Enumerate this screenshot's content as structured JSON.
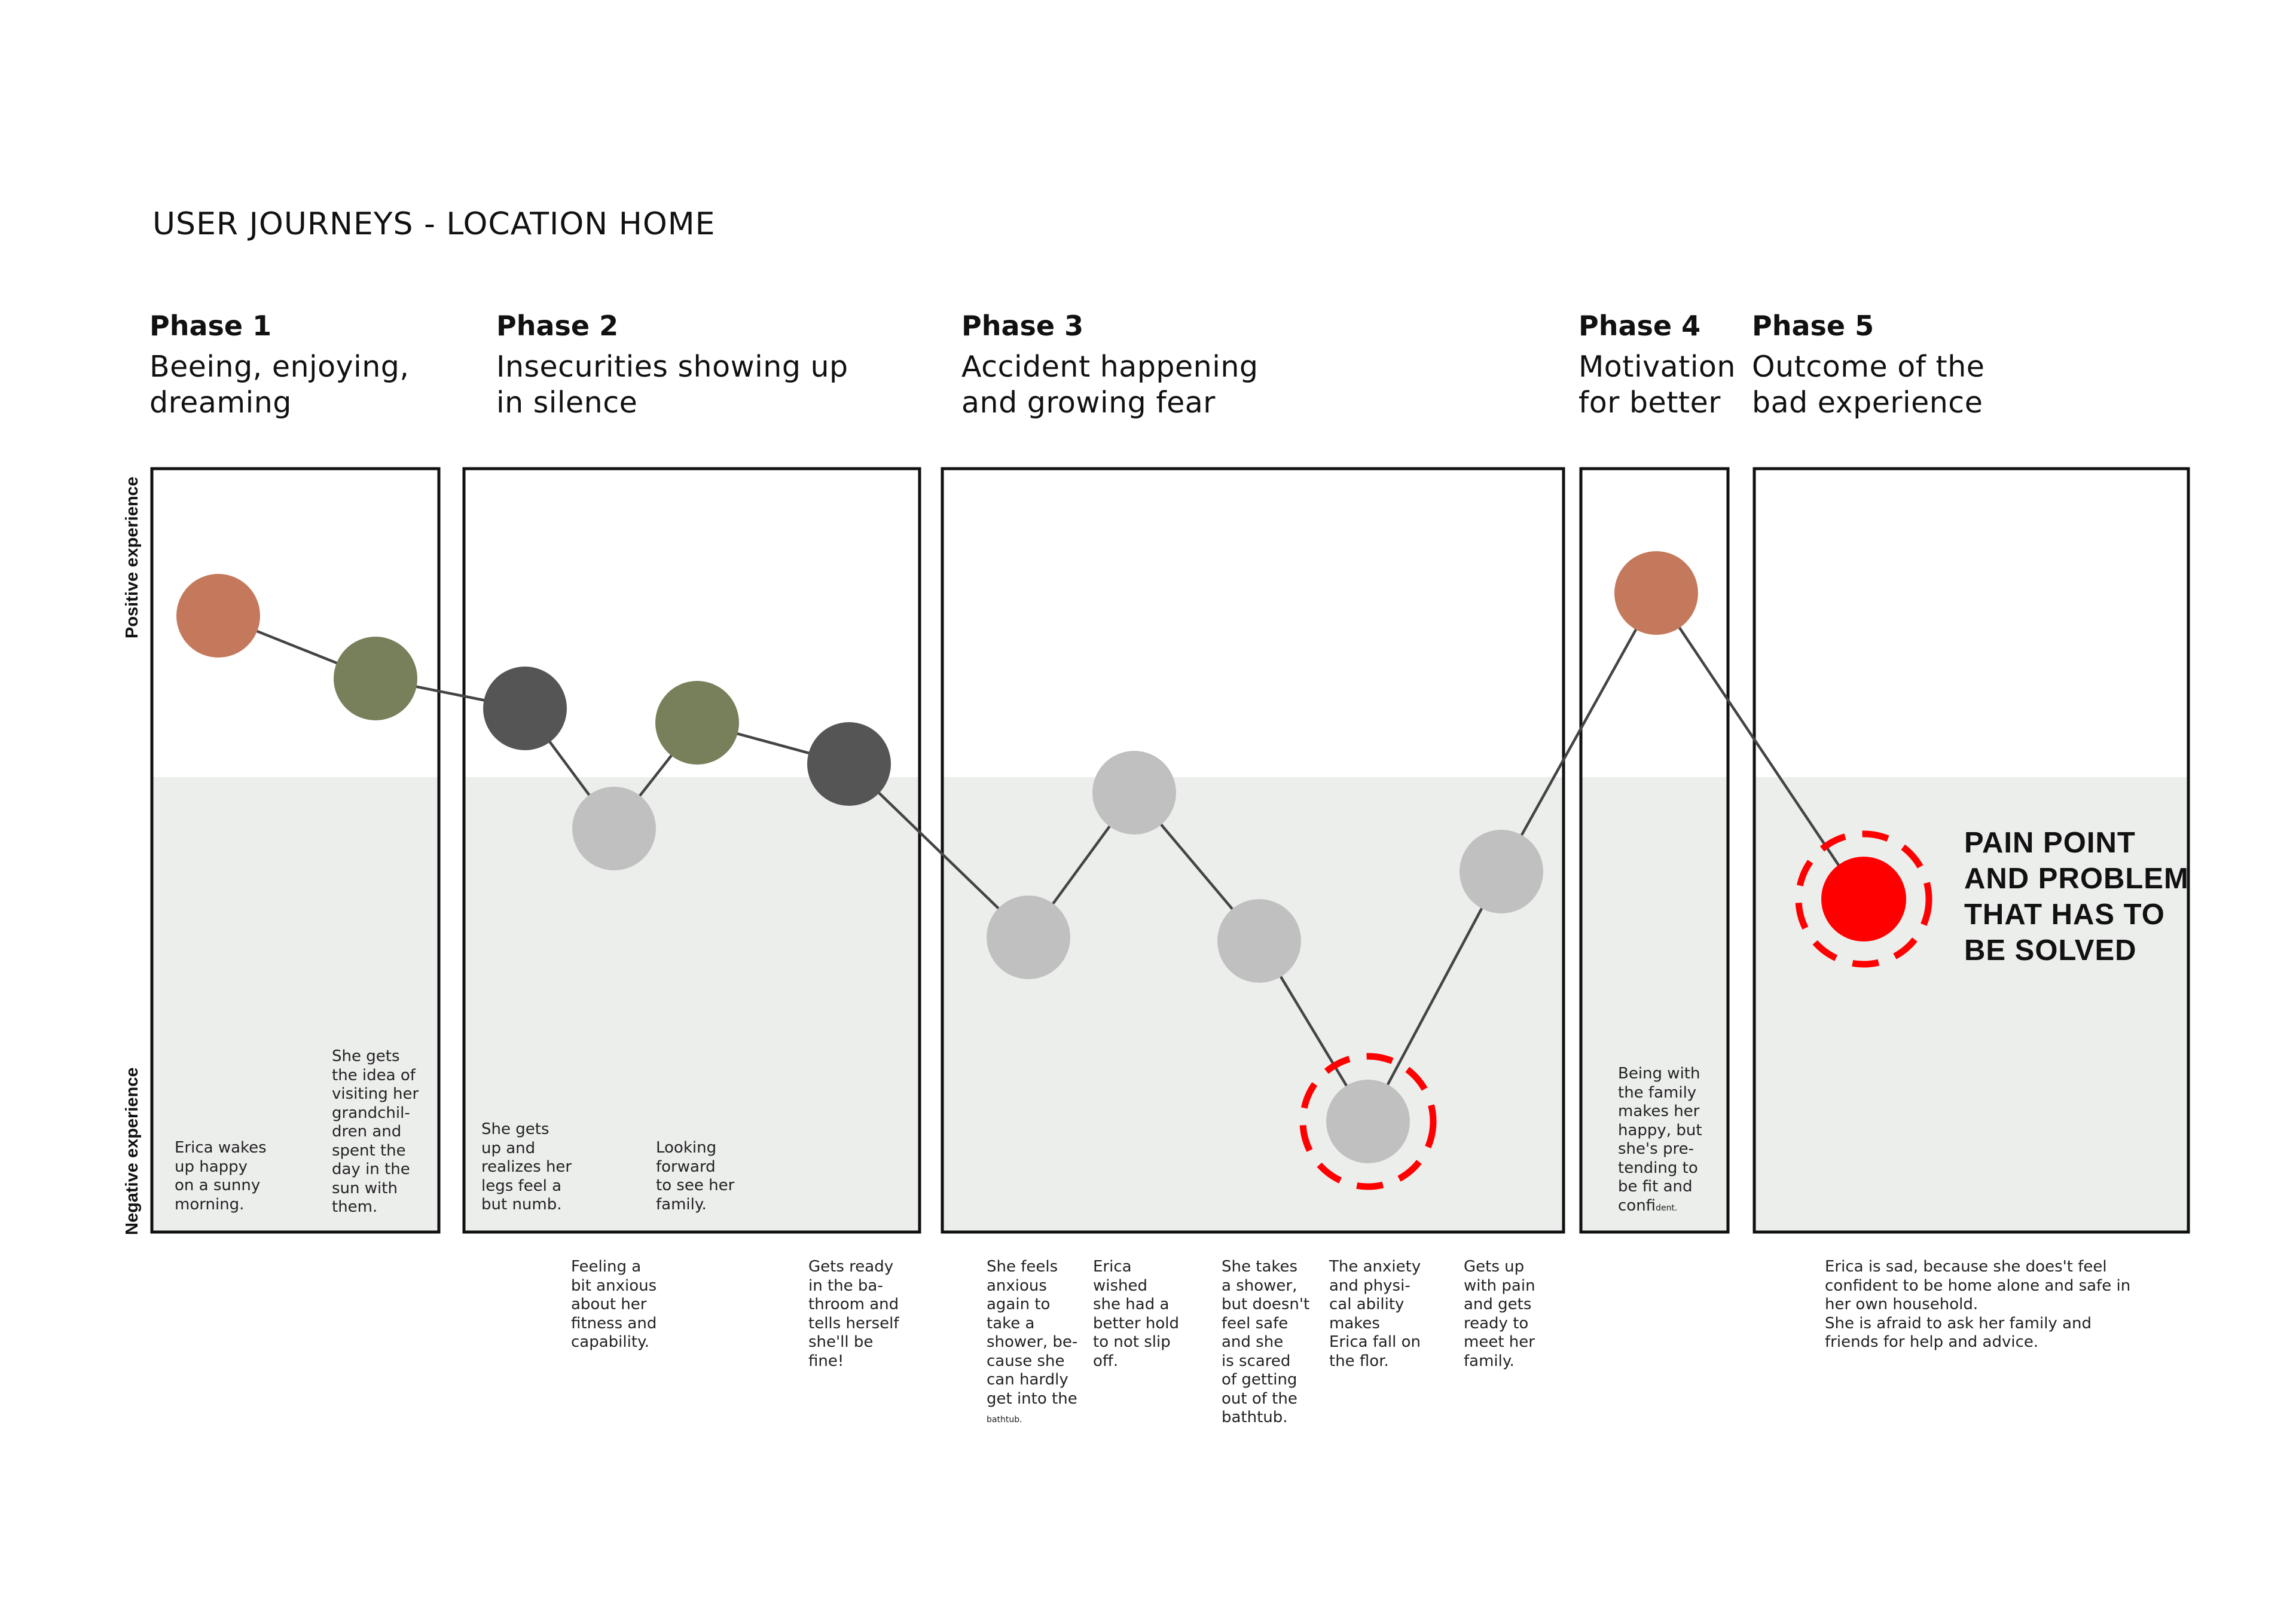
{
  "title": "USER JOURNEYS - LOCATION HOME",
  "axis": {
    "positive": "Positive experience",
    "negative": "Negative experience"
  },
  "phases": [
    {
      "label": "Phase 1",
      "description": "Beeing, enjoying,\ndreaming"
    },
    {
      "label": "Phase 2",
      "description": "Insecurities showing up\nin silence"
    },
    {
      "label": "Phase 3",
      "description": "Accident happening\nand growing fear"
    },
    {
      "label": "Phase 4",
      "description": "Motivation\nfor better"
    },
    {
      "label": "Phase 5",
      "description": "Outcome of the\nbad experience"
    }
  ],
  "colors": {
    "positive_node": "#c4785c",
    "neutral_node": "#77805a",
    "dark_node": "#555555",
    "negative_node": "#c0c0c0",
    "pain_node": "#ff0000",
    "negative_zone": "#eceeec",
    "line": "#444444"
  },
  "steps": [
    {
      "node": "positive_node",
      "note": "Erica wakes\nup happy\non a sunny\nmorning."
    },
    {
      "node": "neutral_node",
      "note": "She gets\nthe idea of\nvisiting her\ngrandchil-\ndren and\nspent the\nday in the\nsun with\nthem."
    },
    {
      "node": "dark_node",
      "note": "She gets\nup and\nrealizes her\nlegs feel a\nbut numb."
    },
    {
      "node": "negative_node",
      "note": "Feeling a\nbit anxious\nabout her\nfitness and\ncapability."
    },
    {
      "node": "neutral_node",
      "note": "Looking\nforward\nto see her\nfamily."
    },
    {
      "node": "dark_node",
      "note": "Gets ready\nin the ba-\nthroom and\ntells herself\nshe'll be\nfine!"
    },
    {
      "node": "negative_node",
      "note": "She feels\nanxious\nagain to\ntake a\nshower, be-\ncause she\ncan hardly\nget into the",
      "note_tail": "bathtub."
    },
    {
      "node": "negative_node",
      "note": "Erica\nwished\nshe had a\nbetter hold\nto not slip\noff."
    },
    {
      "node": "negative_node",
      "note": "She takes\na shower,\nbut doesn't\nfeel safe\nand she\nis scared\nof getting\nout of the\nbathtub."
    },
    {
      "node": "negative_node",
      "note": "The anxiety\nand physi-\ncal ability\nmakes\nErica fall on\nthe flor."
    },
    {
      "node": "negative_node",
      "note": "Gets up\nwith pain\nand gets\nready to\nmeet her\nfamily."
    },
    {
      "node": "positive_node",
      "note": "Being with\nthe family\nmakes her\nhappy, but\nshe's pre-\ntending to\nbe fit and\nconfi",
      "note_tail": "dent."
    },
    {
      "node": "pain_node",
      "note": "Erica is sad, because she does't feel\nconfident to be home alone and safe in\nher own household.\nShe is afraid to ask her family and\nfriends for help and advice."
    }
  ],
  "pain_point": "PAIN POINT\nAND PROBLEM\nTHAT HAS TO\nBE SOLVED"
}
